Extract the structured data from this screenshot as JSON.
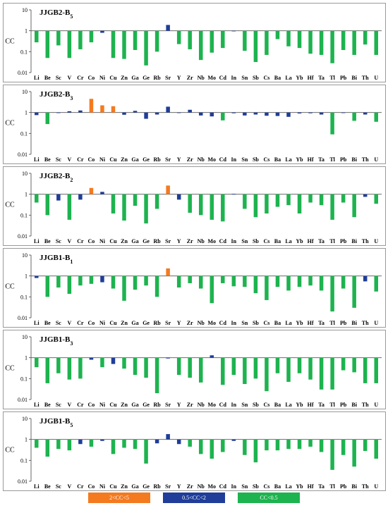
{
  "chart_data": {
    "type": "bar",
    "log_scale": true,
    "ylabel": "CC",
    "ylim": [
      0.01,
      10
    ],
    "y_ticks": [
      "10",
      "1",
      "0.1",
      "0.01"
    ],
    "baseline": 1,
    "grid": false,
    "categories": [
      "Li",
      "Be",
      "Sc",
      "V",
      "Cr",
      "Co",
      "Ni",
      "Cu",
      "Zn",
      "Ga",
      "Ge",
      "Rb",
      "Sr",
      "Y",
      "Zr",
      "Nb",
      "Mo",
      "Cd",
      "In",
      "Sn",
      "Sb",
      "Cs",
      "Ba",
      "La",
      "Yb",
      "Hf",
      "Ta",
      "Tl",
      "Pb",
      "Bi",
      "Th",
      "U"
    ],
    "colors": {
      "high": "#f47a20",
      "mid": "#1f3d99",
      "low": "#1db34f"
    },
    "legend": [
      {
        "key": "high",
        "label": "2<CC<5"
      },
      {
        "key": "mid",
        "label": "0.5<CC<2"
      },
      {
        "key": "low",
        "label": "CC<0.5"
      }
    ],
    "panels": [
      {
        "title": "JJGB2-B",
        "subscript": "5",
        "values": [
          0.28,
          0.05,
          0.2,
          0.05,
          0.13,
          0.28,
          0.8,
          0.05,
          0.045,
          0.12,
          0.022,
          0.1,
          1.9,
          0.23,
          0.13,
          0.04,
          0.09,
          0.15,
          0.95,
          0.11,
          0.032,
          0.07,
          0.4,
          0.18,
          0.15,
          0.08,
          0.07,
          0.028,
          0.12,
          0.07,
          0.22,
          0.07
        ]
      },
      {
        "title": "JJGB2-B",
        "subscript": "3",
        "values": [
          0.75,
          0.28,
          0.95,
          1.15,
          1.25,
          4.5,
          2.2,
          2.0,
          0.78,
          1.2,
          0.5,
          0.8,
          1.9,
          0.95,
          1.35,
          0.72,
          0.65,
          0.42,
          0.92,
          0.72,
          0.8,
          0.7,
          0.68,
          0.62,
          0.9,
          0.92,
          0.8,
          0.09,
          0.95,
          0.4,
          0.8,
          0.36
        ]
      },
      {
        "title": "JJGB2-B",
        "subscript": "2",
        "values": [
          0.4,
          0.1,
          0.5,
          0.06,
          0.55,
          2.0,
          1.3,
          0.12,
          0.055,
          0.28,
          0.04,
          0.2,
          2.6,
          0.55,
          0.13,
          0.1,
          0.06,
          0.05,
          1.05,
          0.2,
          0.08,
          0.12,
          0.25,
          0.3,
          0.12,
          0.4,
          0.3,
          0.06,
          0.4,
          0.08,
          0.75,
          0.35
        ]
      },
      {
        "title": "JJGB1-B",
        "subscript": "1",
        "values": [
          0.8,
          0.1,
          0.28,
          0.14,
          0.35,
          0.42,
          0.5,
          0.25,
          0.065,
          0.22,
          0.35,
          0.1,
          2.3,
          0.28,
          0.45,
          0.25,
          0.05,
          0.45,
          0.32,
          0.3,
          0.15,
          0.07,
          0.3,
          0.2,
          0.3,
          0.35,
          0.2,
          0.02,
          0.25,
          0.03,
          0.55,
          0.18
        ]
      },
      {
        "title": "JJGB1-B",
        "subscript": "3",
        "values": [
          0.35,
          0.06,
          0.18,
          0.09,
          0.1,
          0.8,
          0.35,
          0.5,
          0.3,
          0.15,
          0.11,
          0.02,
          0.92,
          0.15,
          0.11,
          0.065,
          1.3,
          0.05,
          0.15,
          0.055,
          0.1,
          0.025,
          0.18,
          0.07,
          0.18,
          0.09,
          0.03,
          0.03,
          0.25,
          0.2,
          0.06,
          0.06
        ]
      },
      {
        "title": "JJGB1-B",
        "subscript": "5",
        "values": [
          0.4,
          0.15,
          0.35,
          0.3,
          0.6,
          0.45,
          0.85,
          0.2,
          0.4,
          0.35,
          0.07,
          0.65,
          1.8,
          0.6,
          0.45,
          0.2,
          0.12,
          0.25,
          0.85,
          0.18,
          0.08,
          0.3,
          0.3,
          0.35,
          0.35,
          0.45,
          0.25,
          0.035,
          0.18,
          0.05,
          0.28,
          0.12
        ]
      }
    ]
  }
}
